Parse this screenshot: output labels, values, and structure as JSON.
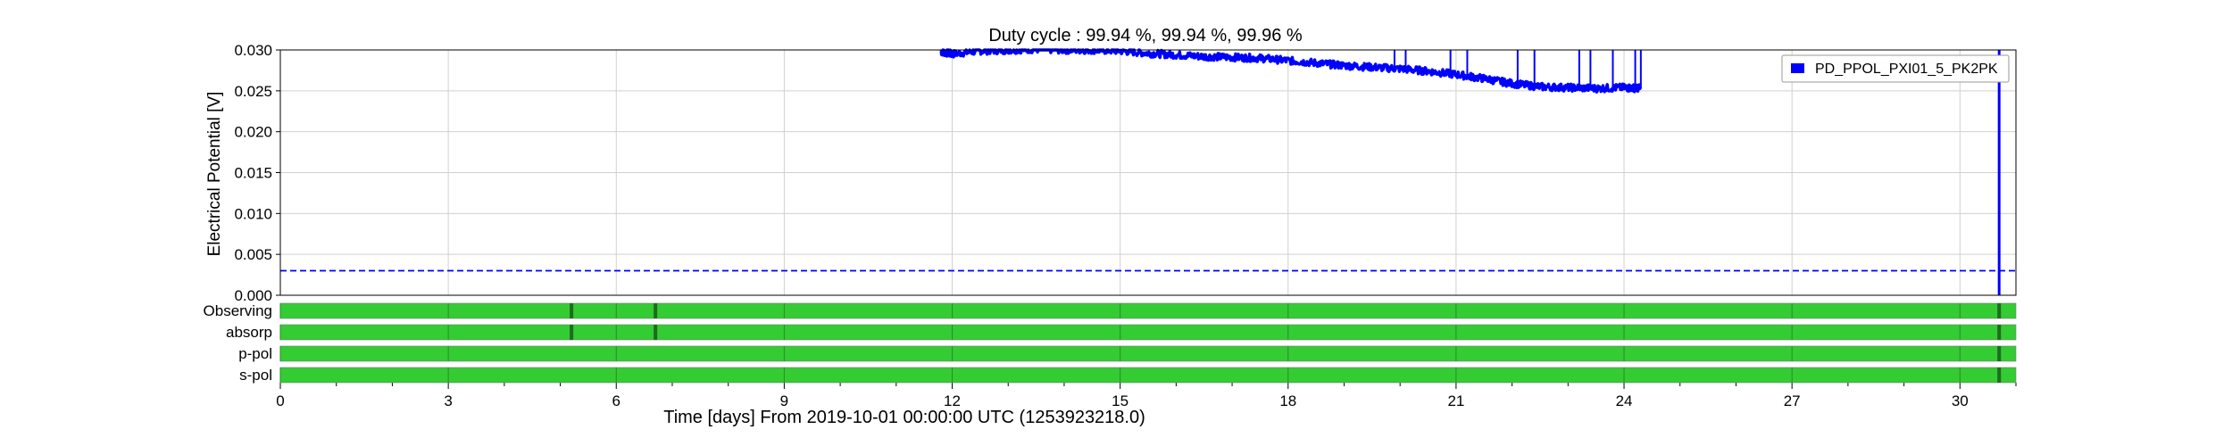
{
  "chart_data": {
    "type": "line",
    "title": "Duty cycle : 99.94 %, 99.94 %, 99.96 %",
    "xlabel": "Time [days] From 2019-10-01 00:00:00 UTC (1253923218.0)",
    "ylabel": "Electrical Potential [V]",
    "xlim": [
      0,
      31
    ],
    "ylim": [
      0,
      0.03
    ],
    "x_ticks": [
      "0",
      "3",
      "6",
      "9",
      "12",
      "15",
      "18",
      "21",
      "24",
      "27",
      "30"
    ],
    "x_tick_values": [
      0,
      3,
      6,
      9,
      12,
      15,
      18,
      21,
      24,
      27,
      30
    ],
    "y_ticks": [
      "0.000",
      "0.005",
      "0.010",
      "0.015",
      "0.020",
      "0.025",
      "0.030"
    ],
    "y_tick_values": [
      0,
      0.005,
      0.01,
      0.015,
      0.02,
      0.025,
      0.03
    ],
    "grid": true,
    "legend_position": "top-right",
    "series": [
      {
        "name": "PD_PPOL_PXI01_5_PK2PK",
        "color": "#0000ff",
        "x": [
          11.8,
          12.0,
          12.5,
          13.0,
          13.5,
          14.0,
          14.5,
          15.0,
          15.5,
          16.0,
          16.5,
          17.0,
          17.5,
          18.0,
          18.5,
          19.0,
          19.5,
          20.0,
          20.5,
          21.0,
          21.5,
          22.0,
          22.5,
          23.0,
          23.5,
          24.0,
          24.3
        ],
        "y": [
          0.0298,
          0.0295,
          0.0299,
          0.03,
          0.0301,
          0.03,
          0.03,
          0.0299,
          0.0296,
          0.0294,
          0.0292,
          0.0291,
          0.029,
          0.0287,
          0.0284,
          0.0281,
          0.0279,
          0.0277,
          0.0274,
          0.027,
          0.0265,
          0.0259,
          0.0255,
          0.0254,
          0.0253,
          0.0254,
          0.0253
        ],
        "spikes_x": [
          19.9,
          20.1,
          20.9,
          21.2,
          22.1,
          22.4,
          23.2,
          23.4,
          23.8,
          24.2,
          24.3
        ]
      }
    ],
    "threshold_line": {
      "y": 0.003,
      "style": "dashed",
      "color": "#0000ff"
    },
    "vertical_marker": {
      "x": 30.7,
      "color": "#0000ff"
    },
    "state_bars": [
      {
        "label": "Observing",
        "color": "#33cc33",
        "dropout_color": "#1f6b1f",
        "dropouts": [
          5.2,
          6.7,
          30.7
        ]
      },
      {
        "label": "absorp",
        "color": "#33cc33",
        "dropout_color": "#1f6b1f",
        "dropouts": [
          5.2,
          6.7,
          30.7
        ]
      },
      {
        "label": "p-pol",
        "color": "#33cc33",
        "dropout_color": "#1f6b1f",
        "dropouts": [
          30.7
        ]
      },
      {
        "label": "s-pol",
        "color": "#33cc33",
        "dropout_color": "#1f6b1f",
        "dropouts": [
          30.7
        ]
      }
    ]
  }
}
